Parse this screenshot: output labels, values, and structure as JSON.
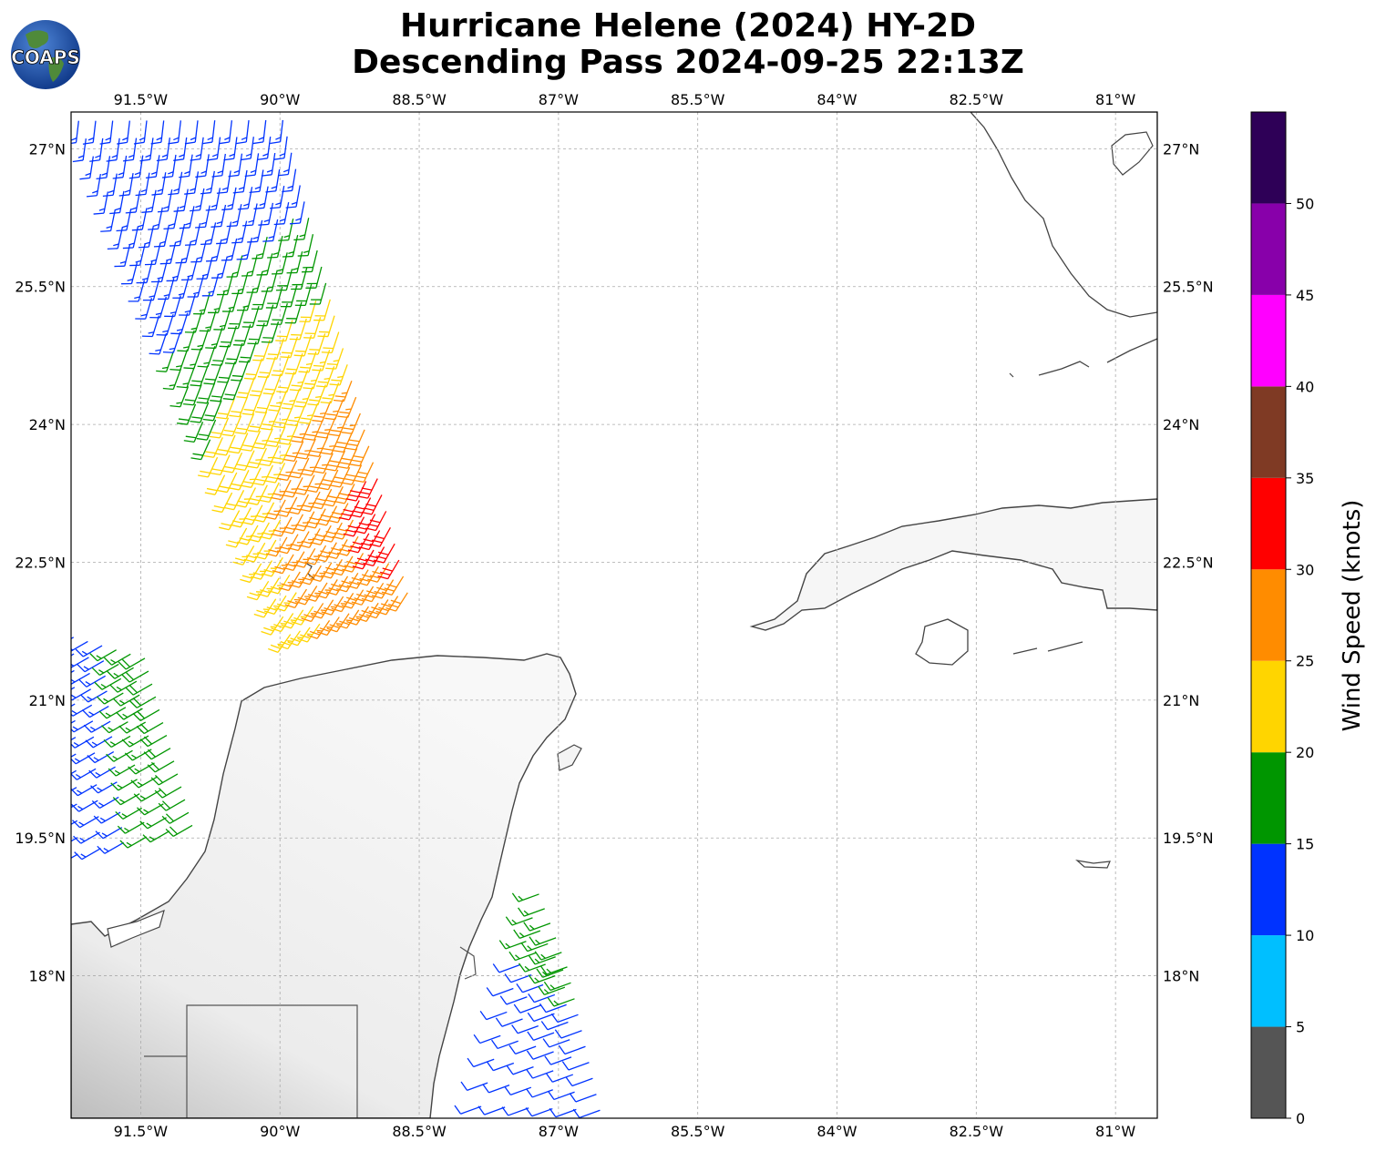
{
  "title_line1": "Hurricane Helene (2024) HY-2D",
  "title_line2": "Descending Pass 2024-09-25 22:13Z",
  "logo_text": "COAPS",
  "map": {
    "lon_range": [
      -92.25,
      -80.55
    ],
    "lat_range": [
      16.45,
      27.4
    ],
    "lon_ticks": [
      {
        "value": -91.5,
        "label": "91.5°W"
      },
      {
        "value": -90,
        "label": "90°W"
      },
      {
        "value": -88.5,
        "label": "88.5°W"
      },
      {
        "value": -87,
        "label": "87°W"
      },
      {
        "value": -85.5,
        "label": "85.5°W"
      },
      {
        "value": -84,
        "label": "84°W"
      },
      {
        "value": -82.5,
        "label": "82.5°W"
      },
      {
        "value": -81,
        "label": "81°W"
      }
    ],
    "lat_ticks": [
      {
        "value": 27,
        "label": "27°N"
      },
      {
        "value": 25.5,
        "label": "25.5°N"
      },
      {
        "value": 24,
        "label": "24°N"
      },
      {
        "value": 22.5,
        "label": "22.5°N"
      },
      {
        "value": 21,
        "label": "21°N"
      },
      {
        "value": 19.5,
        "label": "19.5°N"
      },
      {
        "value": 18,
        "label": "18°N"
      }
    ],
    "gridlines": true
  },
  "colorbar": {
    "label": "Wind Speed (knots)",
    "ticks": [
      "0",
      "5",
      "10",
      "15",
      "20",
      "25",
      "30",
      "35",
      "40",
      "45",
      "50"
    ],
    "bins": [
      {
        "min": 0,
        "max": 5,
        "color": "#555555"
      },
      {
        "min": 5,
        "max": 10,
        "color": "#00bfff"
      },
      {
        "min": 10,
        "max": 15,
        "color": "#0033ff"
      },
      {
        "min": 15,
        "max": 20,
        "color": "#009600"
      },
      {
        "min": 20,
        "max": 25,
        "color": "#ffd500"
      },
      {
        "min": 25,
        "max": 30,
        "color": "#ff8c00"
      },
      {
        "min": 30,
        "max": 35,
        "color": "#ff0000"
      },
      {
        "min": 35,
        "max": 40,
        "color": "#7f3a24"
      },
      {
        "min": 40,
        "max": 45,
        "color": "#ff00ff"
      },
      {
        "min": 45,
        "max": 50,
        "color": "#8800aa"
      },
      {
        "min": 50,
        "max": 55,
        "color": "#2e0057"
      }
    ]
  },
  "wind_swaths": [
    {
      "name": "north-swath",
      "corners": [
        [
          -92.3,
          27.4
        ],
        [
          -89.9,
          27.4
        ],
        [
          -88.55,
          22.1
        ],
        [
          -89.9,
          21.6
        ]
      ]
    },
    {
      "name": "south-west-swath",
      "corners": [
        [
          -92.3,
          21.8
        ],
        [
          -91.4,
          21.5
        ],
        [
          -90.8,
          19.6
        ],
        [
          -92.3,
          19.2
        ]
      ]
    },
    {
      "name": "south-east-swath",
      "corners": [
        [
          -87.2,
          19.1
        ],
        [
          -86.9,
          18.1
        ],
        [
          -86.4,
          16.45
        ],
        [
          -88.0,
          16.45
        ]
      ]
    }
  ]
}
